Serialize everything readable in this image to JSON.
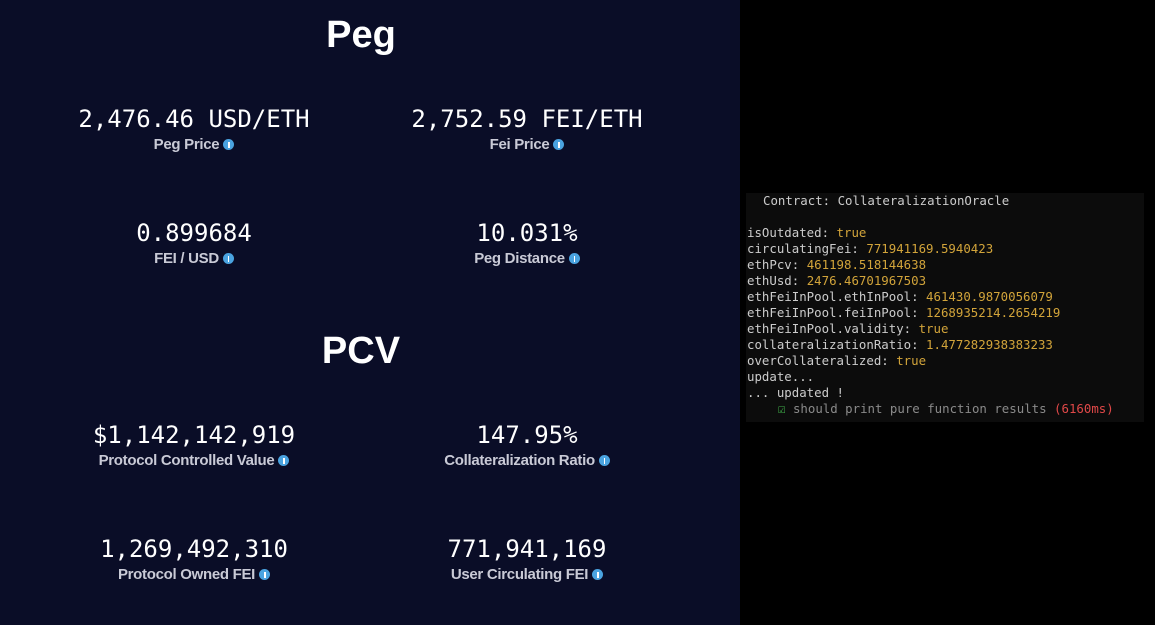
{
  "dashboard": {
    "sections": [
      {
        "title": "Peg",
        "stats": [
          {
            "value": "2,476.46 USD/ETH",
            "label": "Peg Price"
          },
          {
            "value": "2,752.59 FEI/ETH",
            "label": "Fei Price"
          },
          {
            "value": "0.899684",
            "label": "FEI / USD"
          },
          {
            "value": "10.031%",
            "label": "Peg Distance"
          }
        ]
      },
      {
        "title": "PCV",
        "stats": [
          {
            "value": "$1,142,142,919",
            "label": "Protocol Controlled Value"
          },
          {
            "value": "147.95%",
            "label": "Collateralization Ratio"
          },
          {
            "value": "1,269,492,310",
            "label": "Protocol Owned FEI"
          },
          {
            "value": "771,941,169",
            "label": "User Circulating FEI"
          }
        ]
      }
    ]
  },
  "terminal": {
    "header": "Contract: CollateralizationOracle",
    "fields": [
      {
        "key": "isOutdated:",
        "value": "true"
      },
      {
        "key": "circulatingFei:",
        "value": "771941169.5940423"
      },
      {
        "key": "ethPcv:",
        "value": "461198.518144638"
      },
      {
        "key": "ethUsd:",
        "value": "2476.46701967503"
      },
      {
        "key": "ethFeiInPool.ethInPool:",
        "value": "461430.9870056079"
      },
      {
        "key": "ethFeiInPool.feiInPool:",
        "value": "1268935214.2654219"
      },
      {
        "key": "ethFeiInPool.validity:",
        "value": "true"
      },
      {
        "key": "collateralizationRatio:",
        "value": "1.477282938383233"
      },
      {
        "key": "overCollateralized:",
        "value": "true"
      }
    ],
    "messages": [
      "update...",
      "... updated !"
    ],
    "test": {
      "name": "should print pure function results",
      "duration": "(6160ms)"
    }
  }
}
